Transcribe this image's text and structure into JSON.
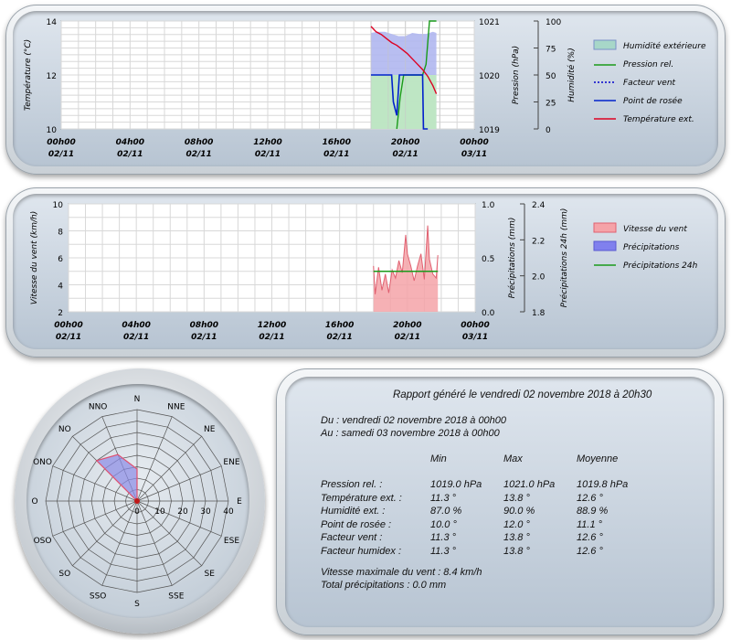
{
  "chart_data": [
    {
      "type": "line",
      "x_ticks": [
        [
          "00h00",
          "02/11"
        ],
        [
          "04h00",
          "02/11"
        ],
        [
          "08h00",
          "02/11"
        ],
        [
          "12h00",
          "02/11"
        ],
        [
          "16h00",
          "02/11"
        ],
        [
          "20h00",
          "02/11"
        ],
        [
          "00h00",
          "03/11"
        ]
      ],
      "x_range_hours": [
        0,
        24
      ],
      "axes": {
        "temp": {
          "label": "Température (°C)",
          "range": [
            10,
            14
          ],
          "ticks": [
            "10",
            "12",
            "14"
          ]
        },
        "press": {
          "label": "Pression (hPa)",
          "range": [
            1019,
            1021
          ],
          "ticks": [
            "1019",
            "1020",
            "1021"
          ]
        },
        "hum": {
          "label": "Humidité (%)",
          "range": [
            0,
            100
          ],
          "ticks": [
            "0",
            "25",
            "50",
            "75",
            "100"
          ]
        }
      },
      "legend": [
        "Humidité extérieure",
        "Pression rel.",
        "Facteur vent",
        "Point de rosée",
        "Température ext."
      ],
      "colors": {
        "humidity": "#b0b7f0",
        "humidity_low": "#bfeabf",
        "pressure": "#1a9a1a",
        "windchill": "#0000cc",
        "dewpoint": "#0022cc",
        "temperature": "#dd0022"
      },
      "series": [
        {
          "name": "Température ext.",
          "axis": "temp",
          "x": [
            18.0,
            18.3,
            18.6,
            18.9,
            19.2,
            19.5,
            19.8,
            20.1,
            20.4,
            20.7,
            21.0,
            21.3,
            21.6,
            21.8
          ],
          "values": [
            13.8,
            13.6,
            13.5,
            13.35,
            13.2,
            13.1,
            12.95,
            12.8,
            12.6,
            12.4,
            12.2,
            11.95,
            11.6,
            11.3
          ]
        },
        {
          "name": "Point de rosée",
          "axis": "temp",
          "x": [
            18.0,
            19.2,
            19.3,
            19.5,
            19.65,
            19.8,
            21.0,
            21.05,
            21.3
          ],
          "values": [
            12.0,
            12.0,
            11.0,
            10.5,
            12.0,
            12.0,
            12.0,
            10.0,
            10.0
          ]
        },
        {
          "name": "Pression rel.",
          "axis": "press",
          "x": [
            19.5,
            19.7,
            19.9,
            20.5,
            21.0,
            21.2,
            21.4,
            21.8
          ],
          "values": [
            1019,
            1019.6,
            1020,
            1020,
            1020,
            1020.2,
            1021,
            1021
          ]
        },
        {
          "name": "Humidité extérieure",
          "axis": "hum",
          "x": [
            18.0,
            18.4,
            18.8,
            19.2,
            19.6,
            20.0,
            20.4,
            20.8,
            21.2,
            21.6,
            21.8
          ],
          "values": [
            89,
            90,
            90,
            88,
            86,
            86,
            89,
            88,
            88,
            90,
            89
          ]
        }
      ]
    },
    {
      "type": "area",
      "x_ticks": [
        [
          "00h00",
          "02/11"
        ],
        [
          "04h00",
          "02/11"
        ],
        [
          "08h00",
          "02/11"
        ],
        [
          "12h00",
          "02/11"
        ],
        [
          "16h00",
          "02/11"
        ],
        [
          "20h00",
          "02/11"
        ],
        [
          "00h00",
          "03/11"
        ]
      ],
      "x_range_hours": [
        0,
        24
      ],
      "axes": {
        "wind": {
          "label": "Vitesse du vent (km/h)",
          "range": [
            2,
            10
          ],
          "ticks": [
            "2",
            "4",
            "6",
            "8",
            "10"
          ]
        },
        "rain": {
          "label": "Précipitations (mm)",
          "range": [
            0,
            1.0
          ],
          "ticks": [
            "0.0",
            "0.5",
            "1.0"
          ]
        },
        "rain24": {
          "label": "Précipitations 24h (mm)",
          "range": [
            1.8,
            2.4
          ],
          "ticks": [
            "1.8",
            "2.0",
            "2.2",
            "2.4"
          ]
        }
      },
      "legend": [
        "Vitesse du vent",
        "Précipitations",
        "Précipitations 24h"
      ],
      "colors": {
        "wind_fill": "#f5a3a8",
        "wind_line": "#e06070",
        "rain": "#8080ee",
        "rain24": "#1a9a1a"
      },
      "series": [
        {
          "name": "Vitesse du vent",
          "axis": "wind",
          "x": [
            18.0,
            18.1,
            18.3,
            18.5,
            18.7,
            18.9,
            19.1,
            19.3,
            19.5,
            19.7,
            19.9,
            20.0,
            20.2,
            20.4,
            20.6,
            20.8,
            21.0,
            21.2,
            21.3,
            21.5,
            21.7,
            21.8
          ],
          "values": [
            5.4,
            3.3,
            5.3,
            3.6,
            4.8,
            3.4,
            5.1,
            4.5,
            5.8,
            4.9,
            7.7,
            6.3,
            5.4,
            4.3,
            5.4,
            6.3,
            4.4,
            8.4,
            5.9,
            4.8,
            4.5,
            6.2
          ]
        },
        {
          "name": "Précipitations 24h",
          "axis": "wind",
          "x": [
            18.0,
            21.8
          ],
          "values": [
            5.0,
            5.0
          ]
        }
      ]
    },
    {
      "type": "polar",
      "directions": [
        "N",
        "NNE",
        "NE",
        "ENE",
        "E",
        "ESE",
        "SE",
        "SSE",
        "S",
        "SSO",
        "SO",
        "OSO",
        "O",
        "ONO",
        "NO",
        "NNO"
      ],
      "radial_ticks": [
        "0",
        "10",
        "20",
        "30",
        "40"
      ],
      "r_max": 40,
      "values": [
        14,
        0,
        0,
        0,
        0,
        0,
        0,
        0,
        0,
        0,
        0,
        0,
        0,
        0,
        25,
        22
      ],
      "colors": {
        "fill": "#8a8ae6",
        "edge": "#e05070"
      }
    }
  ],
  "report": {
    "title": "Rapport généré le vendredi 02 novembre 2018 à 20h30",
    "from": "Du : vendredi 02 novembre 2018 à 00h00",
    "to": "Au : samedi 03 novembre 2018 à 00h00",
    "headers": [
      "Min",
      "Max",
      "Moyenne"
    ],
    "rows": [
      [
        "Pression rel. :",
        "1019.0 hPa",
        "1021.0 hPa",
        "1019.8 hPa"
      ],
      [
        "Température ext. :",
        "11.3 °",
        "13.8 °",
        "12.6 °"
      ],
      [
        "Humidité ext. :",
        "87.0 %",
        "90.0 %",
        "88.9 %"
      ],
      [
        "Point de rosée :",
        "10.0 °",
        "12.0 °",
        "11.1 °"
      ],
      [
        "Facteur vent :",
        "11.3 °",
        "13.8 °",
        "12.6 °"
      ],
      [
        "Facteur humidex :",
        "11.3 °",
        "13.8 °",
        "12.6 °"
      ]
    ],
    "max_wind": "Vitesse maximale du vent : 8.4 km/h",
    "total_rain": "Total précipitations : 0.0 mm"
  }
}
